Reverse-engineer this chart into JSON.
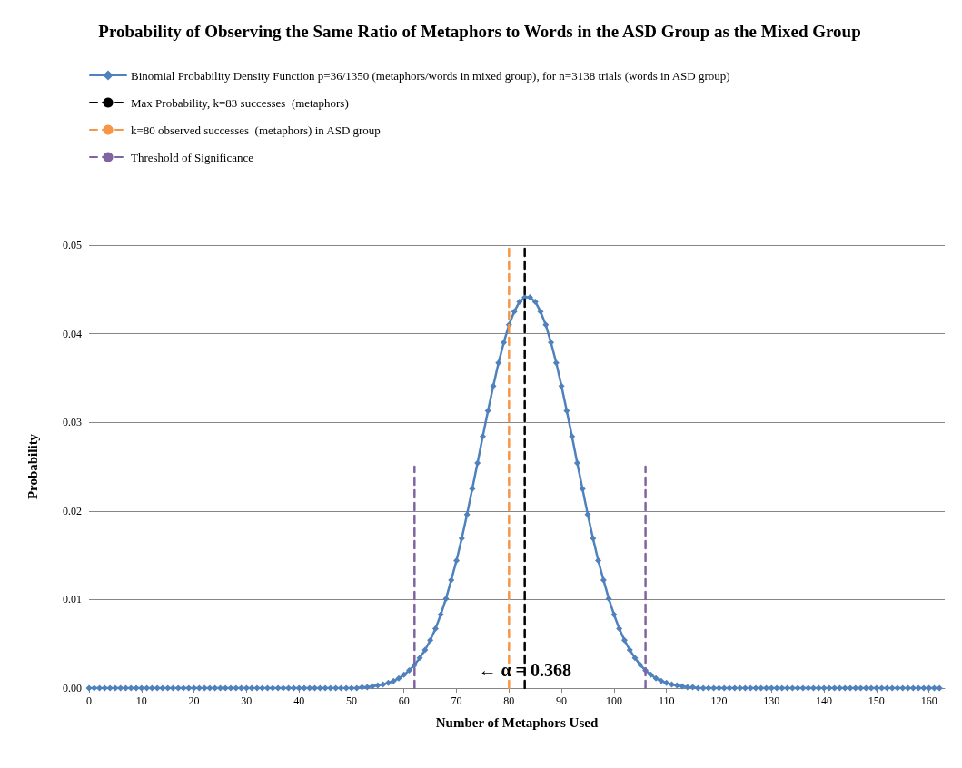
{
  "chart_data": {
    "type": "line",
    "title": "Probability of Observing the Same Ratio of Metaphors to Words in the ASD Group as the Mixed Group",
    "xlabel": "Number of Metaphors Used",
    "ylabel": "Probability",
    "x": [
      0,
      1,
      2,
      3,
      4,
      5,
      6,
      7,
      8,
      9,
      10,
      11,
      12,
      13,
      14,
      15,
      16,
      17,
      18,
      19,
      20,
      21,
      22,
      23,
      24,
      25,
      26,
      27,
      28,
      29,
      30,
      31,
      32,
      33,
      34,
      35,
      36,
      37,
      38,
      39,
      40,
      41,
      42,
      43,
      44,
      45,
      46,
      47,
      48,
      49,
      50,
      51,
      52,
      53,
      54,
      55,
      56,
      57,
      58,
      59,
      60,
      61,
      62,
      63,
      64,
      65,
      66,
      67,
      68,
      69,
      70,
      71,
      72,
      73,
      74,
      75,
      76,
      77,
      78,
      79,
      80,
      81,
      82,
      83,
      84,
      85,
      86,
      87,
      88,
      89,
      90,
      91,
      92,
      93,
      94,
      95,
      96,
      97,
      98,
      99,
      100,
      101,
      102,
      103,
      104,
      105,
      106,
      107,
      108,
      109,
      110,
      111,
      112,
      113,
      114,
      115,
      116,
      117,
      118,
      119,
      120,
      121,
      122,
      123,
      124,
      125,
      126,
      127,
      128,
      129,
      130,
      131,
      132,
      133,
      134,
      135,
      136,
      137,
      138,
      139,
      140,
      141,
      142,
      143,
      144,
      145,
      146,
      147,
      148,
      149,
      150,
      151,
      152,
      153,
      154,
      155,
      156,
      157,
      158,
      159,
      160,
      161,
      162
    ],
    "series": [
      {
        "name": "Binomial Probability Density Function p=36/1350 (metaphors/words in mixed group), for n=3138 trials (words in ASD group)",
        "color": "#4f81bd",
        "marker": "diamond",
        "values": [
          0,
          0,
          0,
          0,
          0,
          0,
          0,
          0,
          0,
          0,
          0,
          0,
          0,
          0,
          0,
          0,
          0,
          0,
          0,
          0,
          0,
          0,
          0,
          0,
          0,
          0,
          0,
          0,
          0,
          0,
          0,
          0,
          0,
          0,
          0,
          0,
          0,
          0,
          0,
          0,
          0,
          0,
          0,
          0,
          0,
          0,
          0,
          0,
          0,
          0,
          0,
          0,
          0.0001,
          0.0001,
          0.0002,
          0.0003,
          0.0004,
          0.0006,
          0.0008,
          0.0011,
          0.0015,
          0.002,
          0.0026,
          0.0034,
          0.0043,
          0.0054,
          0.0067,
          0.0083,
          0.0101,
          0.0122,
          0.0144,
          0.0169,
          0.0196,
          0.0225,
          0.0254,
          0.0284,
          0.0313,
          0.0341,
          0.0367,
          0.039,
          0.041,
          0.0425,
          0.0436,
          0.0441,
          0.0441,
          0.0436,
          0.0425,
          0.041,
          0.039,
          0.0367,
          0.0341,
          0.0313,
          0.0284,
          0.0254,
          0.0225,
          0.0196,
          0.0169,
          0.0144,
          0.0122,
          0.0101,
          0.0083,
          0.0067,
          0.0054,
          0.0043,
          0.0034,
          0.0026,
          0.002,
          0.0015,
          0.0011,
          0.0008,
          0.0006,
          0.0004,
          0.0003,
          0.0002,
          0.0001,
          0.0001,
          0,
          0,
          0,
          0,
          0,
          0,
          0,
          0,
          0,
          0,
          0,
          0,
          0,
          0,
          0,
          0,
          0,
          0,
          0,
          0,
          0,
          0,
          0,
          0,
          0,
          0,
          0,
          0,
          0,
          0,
          0,
          0,
          0,
          0,
          0,
          0,
          0,
          0,
          0,
          0,
          0,
          0,
          0,
          0,
          0,
          0,
          0
        ]
      },
      {
        "name": "Max Probability, k=83 successes  (metaphors)",
        "color": "#000000",
        "marker": "none",
        "line_style": "dashed",
        "x": [
          83,
          83
        ],
        "values": [
          0,
          0.05
        ]
      },
      {
        "name": "k=80 observed successes  (metaphors) in ASD group",
        "color": "#f79646",
        "marker": "none",
        "line_style": "dashed",
        "x": [
          80,
          80
        ],
        "values": [
          0,
          0.05
        ]
      },
      {
        "name": "Threshold of Significance",
        "color": "#8064a2",
        "marker": "none",
        "line_style": "dashed",
        "x": [
          62,
          62,
          84,
          106,
          106
        ],
        "values": [
          0,
          0.025,
          null,
          0,
          0.025
        ]
      }
    ],
    "xlim": [
      0,
      163
    ],
    "xticks": [
      0,
      10,
      20,
      30,
      40,
      50,
      60,
      70,
      80,
      90,
      100,
      110,
      120,
      130,
      140,
      150,
      160
    ],
    "ylim": [
      0,
      0.05
    ],
    "yticks": [
      {
        "value": 0,
        "label": "0.00"
      },
      {
        "value": 0.01,
        "label": "0.01"
      },
      {
        "value": 0.02,
        "label": "0.02"
      },
      {
        "value": 0.03,
        "label": "0.03"
      },
      {
        "value": 0.04,
        "label": "0.04"
      },
      {
        "value": 0.05,
        "label": "0.05"
      }
    ],
    "grid": "y",
    "legend": "top",
    "annotations": [
      {
        "text": "← α = 0.368",
        "x": 83,
        "y": 0.002
      }
    ]
  }
}
